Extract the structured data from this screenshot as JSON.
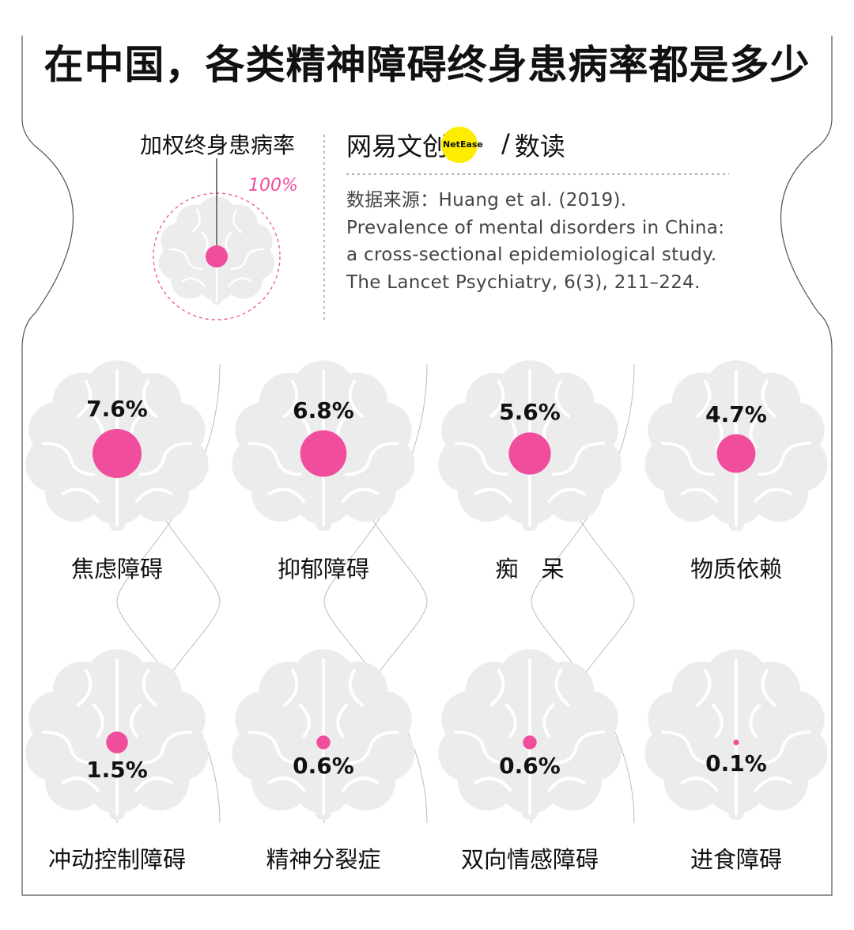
{
  "title": "在中国，各类精神障碍终身患病率都是多少",
  "legend": {
    "label": "加权终身患病率",
    "max_label": "100%"
  },
  "brand": {
    "name_a": "网易文创",
    "badge": "NetEase",
    "slash": "/",
    "name_b": "数读"
  },
  "source": "数据来源：Huang et al. (2019). Prevalence of mental disorders in China: a cross-sectional epidemiological study. The Lancet Psychiatry, 6(3), 211–224.",
  "colors": {
    "accent": "#f14d9d",
    "brain": "#ececec",
    "brain_line": "#ffffff",
    "frame": "#555555",
    "brand_yellow": "#ffed00"
  },
  "chart_data": {
    "type": "bubble",
    "title": "在中国，各类精神障碍终身患病率都是多少",
    "unit": "%",
    "categories": [
      "焦虑障碍",
      "抑郁障碍",
      "痴　呆",
      "物质依赖",
      "冲动控制障碍",
      "精神分裂症",
      "双向情感障碍",
      "进食障碍"
    ],
    "values": [
      7.6,
      6.8,
      5.6,
      4.7,
      1.5,
      0.6,
      0.6,
      0.1
    ],
    "value_labels": [
      "7.6%",
      "6.8%",
      "5.6%",
      "4.7%",
      "1.5%",
      "0.6%",
      "0.6%",
      "0.1%"
    ]
  }
}
